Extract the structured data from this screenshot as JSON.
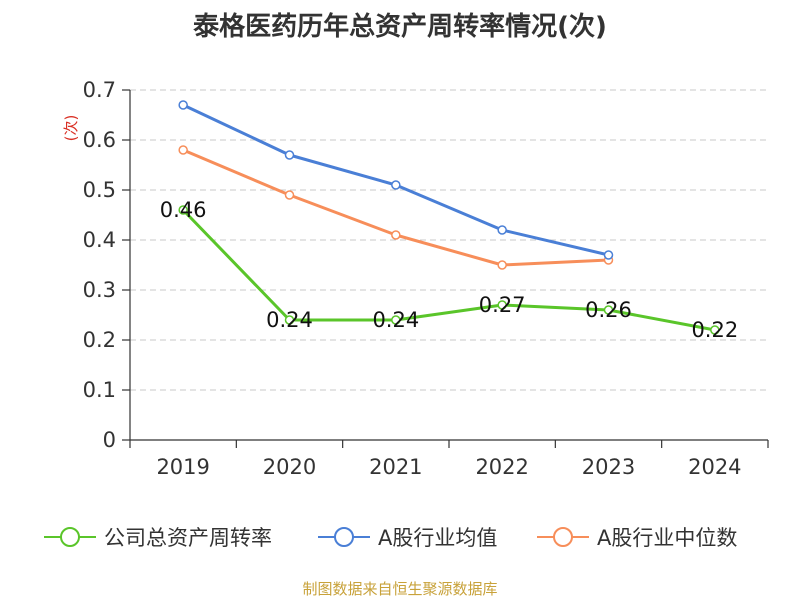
{
  "chart_data": {
    "type": "line",
    "title": "泰格医药历年总资产周转率情况(次)",
    "ylabel": "(次)",
    "xlabel": "",
    "categories": [
      "2019",
      "2020",
      "2021",
      "2022",
      "2023",
      "2024"
    ],
    "ylim": [
      0,
      0.7
    ],
    "yticks": [
      0,
      0.1,
      0.2,
      0.3,
      0.4,
      0.5,
      0.6,
      0.7
    ],
    "ytick_labels": [
      "0",
      "0.1",
      "0.2",
      "0.3",
      "0.4",
      "0.5",
      "0.6",
      "0.7"
    ],
    "grid": "horizontal dashed",
    "legend_position": "bottom",
    "series": [
      {
        "name": "公司总资产周转率",
        "color": "#5ac52a",
        "values": [
          0.46,
          0.24,
          0.24,
          0.27,
          0.26,
          0.22
        ],
        "labels": [
          "0.46",
          "0.24",
          "0.24",
          "0.27",
          "0.26",
          "0.22"
        ]
      },
      {
        "name": "A股行业均值",
        "color": "#4a7fd6",
        "values": [
          0.67,
          0.57,
          0.51,
          0.42,
          0.37,
          null
        ]
      },
      {
        "name": "A股行业中位数",
        "color": "#f78e5a",
        "values": [
          0.58,
          0.49,
          0.41,
          0.35,
          0.36,
          null
        ]
      }
    ]
  },
  "source": "制图数据来自恒生聚源数据库"
}
